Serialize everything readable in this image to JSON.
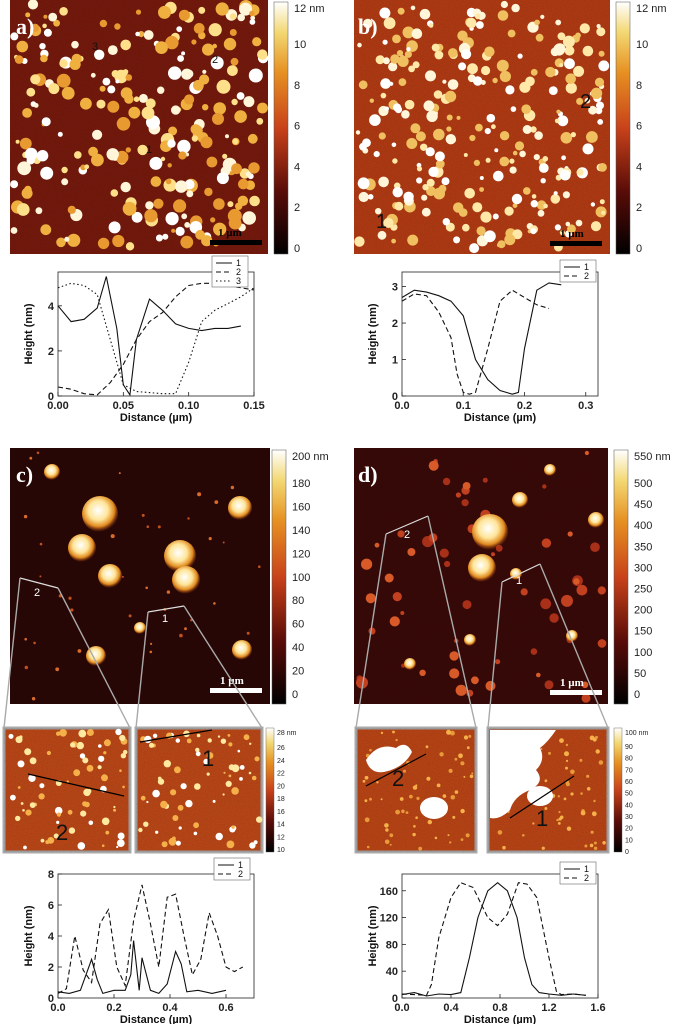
{
  "panels": {
    "a": {
      "label": "a)",
      "scale_bar": "1 µm",
      "colorbar": {
        "unit": "12 nm",
        "ticks": [
          "10",
          "8",
          "6",
          "4",
          "2",
          "0"
        ]
      },
      "line_markers": [
        "1",
        "2",
        "3"
      ]
    },
    "b": {
      "label": "b)",
      "scale_bar": "1 µm",
      "colorbar": {
        "unit": "12 nm",
        "ticks": [
          "10",
          "8",
          "6",
          "4",
          "2",
          "0"
        ]
      },
      "line_markers": [
        "1",
        "2"
      ]
    },
    "c": {
      "label": "c)",
      "scale_bar": "1 µm",
      "colorbar": {
        "unit": "200 nm",
        "ticks": [
          "180",
          "160",
          "140",
          "120",
          "100",
          "80",
          "60",
          "40",
          "20",
          "0"
        ]
      },
      "line_markers": [
        "1",
        "2"
      ],
      "zoom_colorbar": {
        "unit": "28 nm",
        "ticks": [
          "26",
          "24",
          "22",
          "20",
          "18",
          "16",
          "14",
          "12",
          "10"
        ]
      },
      "zoom_markers": [
        "2",
        "1"
      ]
    },
    "d": {
      "label": "d)",
      "scale_bar": "1 µm",
      "colorbar": {
        "unit": "550 nm",
        "ticks": [
          "500",
          "450",
          "400",
          "350",
          "300",
          "250",
          "200",
          "150",
          "100",
          "50",
          "0"
        ]
      },
      "line_markers": [
        "2",
        "1"
      ],
      "zoom_colorbar": {
        "unit": "100 nm",
        "ticks": [
          "90",
          "80",
          "70",
          "60",
          "50",
          "40",
          "30",
          "20",
          "10",
          "0"
        ]
      },
      "zoom_markers": [
        "2",
        "1"
      ]
    }
  },
  "chart_data": [
    {
      "id": "a",
      "type": "line",
      "xlabel": "Distance (µm)",
      "ylabel": "Height (nm)",
      "xlim": [
        0,
        0.15
      ],
      "ylim": [
        0,
        5.5
      ],
      "xticks": [
        "0.00",
        "0.05",
        "0.10",
        "0.15"
      ],
      "xtick_vals": [
        0,
        0.05,
        0.1,
        0.15
      ],
      "yticks": [
        "0",
        "2",
        "4"
      ],
      "ytick_vals": [
        0,
        2,
        4
      ],
      "legend": [
        "1",
        "2",
        "3"
      ],
      "series": [
        {
          "name": "1",
          "style": "solid",
          "x": [
            0,
            0.01,
            0.02,
            0.03,
            0.037,
            0.045,
            0.05,
            0.055,
            0.06,
            0.07,
            0.08,
            0.09,
            0.1,
            0.11,
            0.12,
            0.13,
            0.14
          ],
          "y": [
            4.0,
            3.3,
            3.4,
            3.9,
            5.3,
            3.0,
            0.5,
            0.05,
            2.5,
            4.3,
            3.8,
            3.2,
            3.0,
            2.9,
            3.0,
            3.0,
            3.1
          ]
        },
        {
          "name": "2",
          "style": "dashed",
          "x": [
            0,
            0.01,
            0.02,
            0.03,
            0.04,
            0.05,
            0.06,
            0.07,
            0.08,
            0.09,
            0.1,
            0.11,
            0.12,
            0.13,
            0.14,
            0.15
          ],
          "y": [
            0.4,
            0.3,
            0.1,
            0.05,
            0.6,
            1.4,
            2.5,
            3.3,
            3.7,
            4.4,
            4.9,
            5.0,
            5.0,
            4.9,
            4.8,
            4.7
          ]
        },
        {
          "name": "3",
          "style": "dotted",
          "x": [
            0,
            0.01,
            0.02,
            0.03,
            0.04,
            0.05,
            0.06,
            0.07,
            0.08,
            0.09,
            0.1,
            0.11,
            0.12,
            0.13,
            0.14,
            0.15
          ],
          "y": [
            4.8,
            5.0,
            4.9,
            4.5,
            2.5,
            0.5,
            0.2,
            0.15,
            0.1,
            0.1,
            1.5,
            3.3,
            3.8,
            4.1,
            4.4,
            4.8
          ]
        }
      ]
    },
    {
      "id": "b",
      "type": "line",
      "xlabel": "Distance (µm)",
      "ylabel": "Height (nm)",
      "xlim": [
        0,
        0.32
      ],
      "ylim": [
        0,
        3.4
      ],
      "xticks": [
        "0.0",
        "0.1",
        "0.2",
        "0.3"
      ],
      "xtick_vals": [
        0,
        0.1,
        0.2,
        0.3
      ],
      "yticks": [
        "0",
        "1",
        "2",
        "3"
      ],
      "ytick_vals": [
        0,
        1,
        2,
        3
      ],
      "legend": [
        "1",
        "2"
      ],
      "series": [
        {
          "name": "1",
          "style": "solid",
          "x": [
            0,
            0.02,
            0.04,
            0.06,
            0.08,
            0.1,
            0.12,
            0.14,
            0.16,
            0.18,
            0.19,
            0.2,
            0.22,
            0.24,
            0.26
          ],
          "y": [
            2.7,
            2.9,
            2.85,
            2.75,
            2.6,
            2.2,
            1.0,
            0.45,
            0.15,
            0.05,
            0.1,
            1.3,
            2.9,
            3.1,
            3.05
          ]
        },
        {
          "name": "2",
          "style": "dashed",
          "x": [
            0,
            0.02,
            0.04,
            0.06,
            0.08,
            0.09,
            0.1,
            0.11,
            0.12,
            0.14,
            0.16,
            0.18,
            0.2,
            0.22,
            0.24
          ],
          "y": [
            2.6,
            2.8,
            2.75,
            2.3,
            1.6,
            0.6,
            0.1,
            0.05,
            0.1,
            1.3,
            2.6,
            2.9,
            2.7,
            2.5,
            2.4
          ]
        }
      ]
    },
    {
      "id": "c",
      "type": "line",
      "xlabel": "Distance (µm)",
      "ylabel": "Height (nm)",
      "xlim": [
        0,
        0.7
      ],
      "ylim": [
        0,
        8
      ],
      "xticks": [
        "0.0",
        "0.2",
        "0.4",
        "0.6"
      ],
      "xtick_vals": [
        0,
        0.2,
        0.4,
        0.6
      ],
      "yticks": [
        "0",
        "2",
        "4",
        "6",
        "8"
      ],
      "ytick_vals": [
        0,
        2,
        4,
        6,
        8
      ],
      "legend": [
        "1",
        "2"
      ],
      "series": [
        {
          "name": "1",
          "style": "solid",
          "x": [
            0,
            0.04,
            0.08,
            0.1,
            0.12,
            0.14,
            0.16,
            0.2,
            0.24,
            0.26,
            0.27,
            0.29,
            0.3,
            0.33,
            0.36,
            0.39,
            0.42,
            0.44,
            0.46,
            0.5,
            0.55,
            0.6
          ],
          "y": [
            0.4,
            0.3,
            0.5,
            1.5,
            2.5,
            1.2,
            0.3,
            0.5,
            0.5,
            1.5,
            3.7,
            0.5,
            2.6,
            0.5,
            0.3,
            0.9,
            3.0,
            2.2,
            0.4,
            0.5,
            0.3,
            0.5
          ]
        },
        {
          "name": "2",
          "style": "dashed",
          "x": [
            0,
            0.03,
            0.06,
            0.09,
            0.12,
            0.15,
            0.18,
            0.21,
            0.24,
            0.27,
            0.3,
            0.33,
            0.36,
            0.39,
            0.42,
            0.45,
            0.48,
            0.51,
            0.54,
            0.57,
            0.6,
            0.63,
            0.66
          ],
          "y": [
            0.3,
            0.6,
            4.0,
            1.8,
            1.0,
            4.8,
            5.7,
            2.0,
            0.8,
            5.0,
            7.3,
            4.8,
            2.0,
            6.5,
            6.7,
            4.0,
            1.5,
            2.5,
            5.5,
            4.0,
            2.0,
            1.7,
            2.0
          ]
        }
      ]
    },
    {
      "id": "d",
      "type": "line",
      "xlabel": "Distance (µm)",
      "ylabel": "Height (nm)",
      "xlim": [
        0,
        1.6
      ],
      "ylim": [
        0,
        185
      ],
      "xticks": [
        "0.0",
        "0.4",
        "0.8",
        "1.2",
        "1.6"
      ],
      "xtick_vals": [
        0,
        0.4,
        0.8,
        1.2,
        1.6
      ],
      "yticks": [
        "0",
        "40",
        "80",
        "120",
        "160"
      ],
      "ytick_vals": [
        0,
        40,
        80,
        120,
        160
      ],
      "legend": [
        "1",
        "2"
      ],
      "series": [
        {
          "name": "1",
          "style": "solid",
          "x": [
            0,
            0.1,
            0.2,
            0.3,
            0.4,
            0.48,
            0.55,
            0.62,
            0.7,
            0.78,
            0.86,
            0.94,
            1.0,
            1.06,
            1.12,
            1.2,
            1.3,
            1.4,
            1.5
          ],
          "y": [
            5,
            8,
            3,
            6,
            5,
            8,
            60,
            120,
            160,
            172,
            160,
            120,
            60,
            20,
            8,
            6,
            4,
            6,
            4
          ]
        },
        {
          "name": "2",
          "style": "dashed",
          "x": [
            0,
            0.1,
            0.2,
            0.24,
            0.3,
            0.4,
            0.48,
            0.58,
            0.7,
            0.78,
            0.86,
            0.95,
            1.02,
            1.1,
            1.2,
            1.26,
            1.3,
            1.4,
            1.5
          ],
          "y": [
            6,
            5,
            4,
            20,
            90,
            150,
            172,
            165,
            120,
            108,
            125,
            172,
            170,
            150,
            60,
            10,
            5,
            6,
            4
          ]
        }
      ]
    }
  ]
}
